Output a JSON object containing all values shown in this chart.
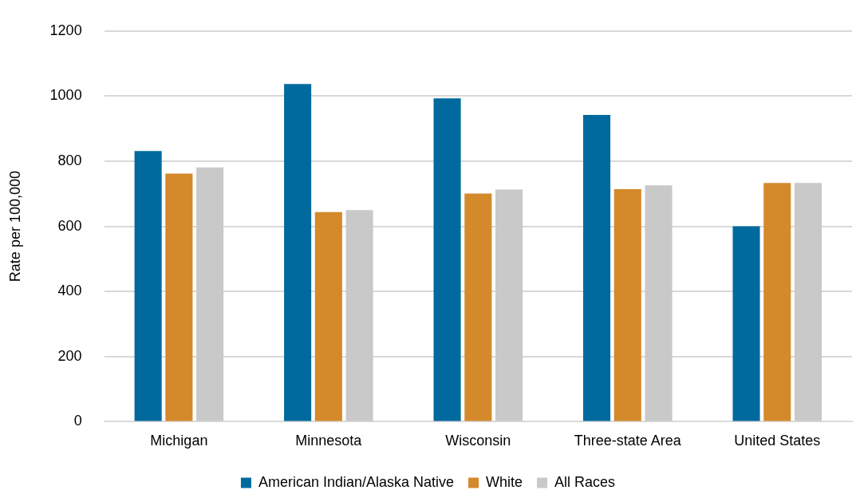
{
  "chart_data": {
    "type": "bar",
    "ylabel": "Rate per 100,000",
    "categories": [
      "Michigan",
      "Minnesota",
      "Wisconsin",
      "Three-state Area",
      "United States"
    ],
    "series": [
      {
        "name": "American Indian/Alaska Native",
        "color": "#006a9e",
        "values": [
          831,
          1037,
          993,
          942,
          600
        ]
      },
      {
        "name": "White",
        "color": "#d4892b",
        "values": [
          762,
          644,
          701,
          714,
          733
        ]
      },
      {
        "name": "All Races",
        "color": "#c9c9c9",
        "values": [
          781,
          650,
          713,
          726,
          733
        ]
      }
    ],
    "ylim": [
      0,
      1200
    ],
    "yticks": [
      0,
      200,
      400,
      600,
      800,
      1000,
      1200
    ],
    "grid": "y",
    "legend": "bottom"
  }
}
